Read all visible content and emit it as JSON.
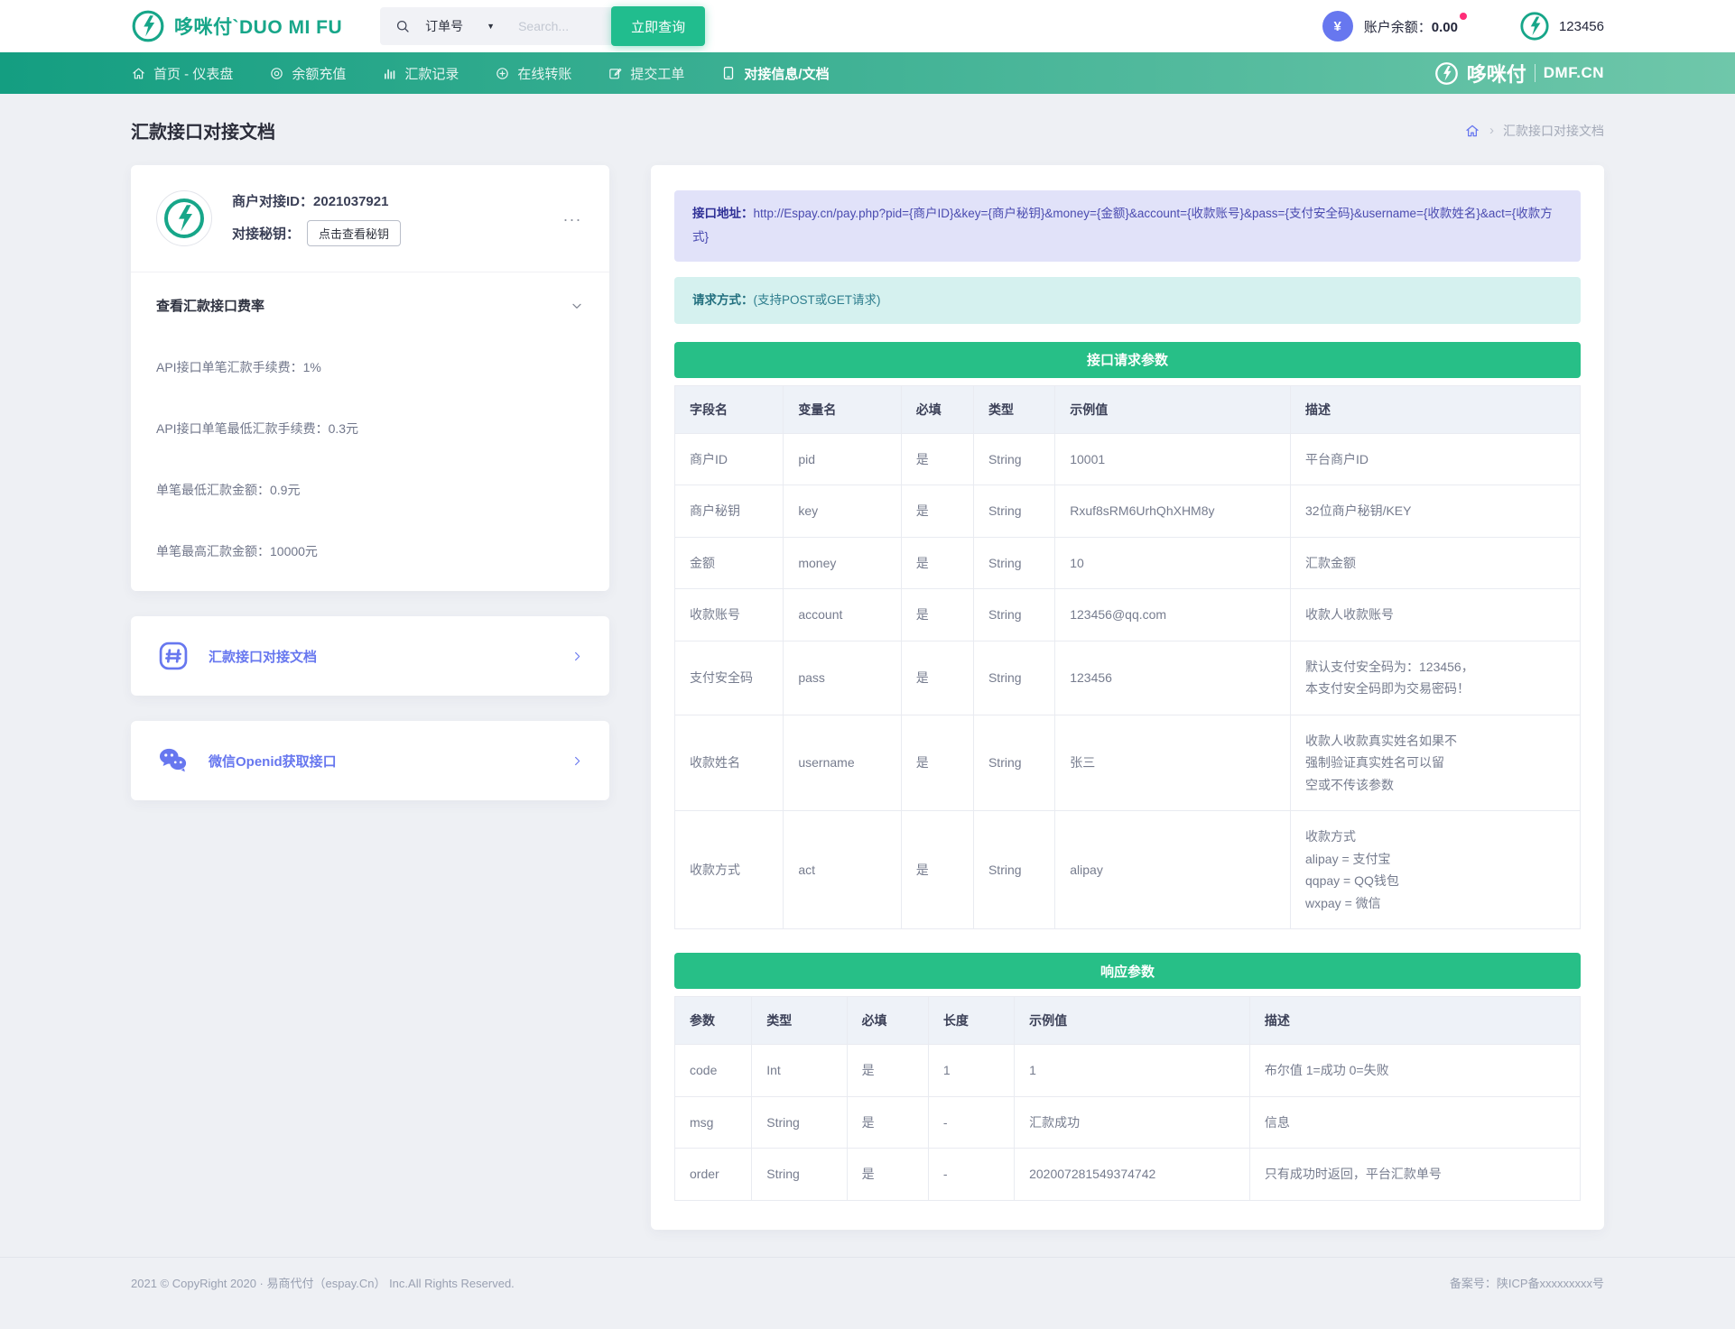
{
  "colors": {
    "brand_green": "#17a689",
    "button_green": "#21bd8e",
    "nav_start": "#149e81",
    "nav_end": "#6fc7aa",
    "section_green": "#27bf87",
    "accent_purple": "#6777ef",
    "address_bg": "#e1e2f9",
    "address_text": "#4a4bb0",
    "method_bg": "#d5f1ef",
    "method_text": "#2e7e8e",
    "dot_pink": "#ff2d78",
    "page_bg": "#eef0f4"
  },
  "header": {
    "logo_text": "哆咪付`DUO MI FU",
    "search": {
      "category": "订单号",
      "caret": "▼",
      "placeholder": "Search...",
      "button": "立即查询"
    },
    "currency_symbol": "¥",
    "balance_label": "账户余额：",
    "balance_value": "0.00",
    "username": "123456"
  },
  "nav": {
    "items": [
      {
        "label": "首页 - 仪表盘",
        "icon": "home",
        "active": false
      },
      {
        "label": "余额充值",
        "icon": "target",
        "active": false
      },
      {
        "label": "汇款记录",
        "icon": "chart",
        "active": false
      },
      {
        "label": "在线转账",
        "icon": "transfer",
        "active": false
      },
      {
        "label": "提交工单",
        "icon": "edit",
        "active": false
      },
      {
        "label": "对接信息/文档",
        "icon": "doc",
        "active": true
      }
    ],
    "brand": "哆咪付",
    "brand_domain": "DMF.CN"
  },
  "page": {
    "title": "汇款接口对接文档",
    "breadcrumb_current": "汇款接口对接文档",
    "breadcrumb_sep": "›"
  },
  "profile_card": {
    "merchant_id_label": "商户对接ID：",
    "merchant_id": "2021037921",
    "secret_label": "对接秘钥：",
    "secret_button": "点击查看秘钥",
    "more": "...",
    "fees_title": "查看汇款接口费率",
    "fees": [
      "API接口单笔汇款手续费：1%",
      "API接口单笔最低汇款手续费：0.3元",
      "单笔最低汇款金额：0.9元",
      "单笔最高汇款金额：10000元"
    ]
  },
  "links": [
    {
      "label": "汇款接口对接文档",
      "icon": "hash"
    },
    {
      "label": "微信Openid获取接口",
      "icon": "wechat"
    }
  ],
  "api": {
    "address_label": "接口地址：",
    "address": "http://Espay.cn/pay.php?pid={商户ID}&key={商户秘钥}&money={金额}&account={收款账号}&pass={支付安全码}&username={收款姓名}&act={收款方式}",
    "method_label": "请求方式：",
    "method": "(支持POST或GET请求)"
  },
  "request_table": {
    "title": "接口请求参数",
    "headers": [
      "字段名",
      "变量名",
      "必填",
      "类型",
      "示例值",
      "描述"
    ],
    "rows": [
      [
        "商户ID",
        "pid",
        "是",
        "String",
        "10001",
        "平台商户ID"
      ],
      [
        "商户秘钥",
        "key",
        "是",
        "String",
        "Rxuf8sRM6UrhQhXHM8y",
        "32位商户秘钥/KEY"
      ],
      [
        "金额",
        "money",
        "是",
        "String",
        "10",
        "汇款金额"
      ],
      [
        "收款账号",
        "account",
        "是",
        "String",
        "123456@qq.com",
        "收款人收款账号"
      ],
      [
        "支付安全码",
        "pass",
        "是",
        "String",
        "123456",
        "默认支付安全码为：123456，\n本支付安全码即为交易密码！"
      ],
      [
        "收款姓名",
        "username",
        "是",
        "String",
        "张三",
        "收款人收款真实姓名如果不\n强制验证真实姓名可以留\n空或不传该参数"
      ],
      [
        "收款方式",
        "act",
        "是",
        "String",
        "alipay",
        "收款方式\nalipay = 支付宝\nqqpay = QQ钱包\nwxpay = 微信"
      ]
    ]
  },
  "response_table": {
    "title": "响应参数",
    "headers": [
      "参数",
      "类型",
      "必填",
      "长度",
      "示例值",
      "描述"
    ],
    "rows": [
      [
        "code",
        "Int",
        "是",
        "1",
        "1",
        "布尔值 1=成功 0=失败"
      ],
      [
        "msg",
        "String",
        "是",
        "-",
        "汇款成功",
        "信息"
      ],
      [
        "order",
        "String",
        "是",
        "-",
        "202007281549374742",
        "只有成功时返回，平台汇款单号"
      ]
    ]
  },
  "footer": {
    "left": "2021 © CopyRight 2020 · 易商代付（espay.Cn） Inc.All Rights Reserved.",
    "right": "备案号：陕ICP备xxxxxxxxx号"
  }
}
